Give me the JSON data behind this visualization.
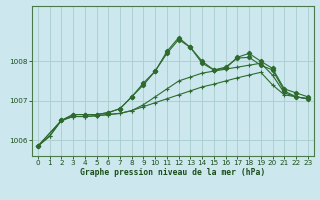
{
  "bg_color": "#cce8ee",
  "grid_color": "#aacccc",
  "line_color": "#2d6a2d",
  "marker_color": "#2d6a2d",
  "xlabel": "Graphe pression niveau de la mer (hPa)",
  "xlabel_color": "#1a4d1a",
  "tick_color": "#1a4d1a",
  "xlim": [
    -0.5,
    23.5
  ],
  "ylim": [
    1005.6,
    1009.4
  ],
  "yticks": [
    1006,
    1007,
    1008
  ],
  "xticks": [
    0,
    1,
    2,
    3,
    4,
    5,
    6,
    7,
    8,
    9,
    10,
    11,
    12,
    13,
    14,
    15,
    16,
    17,
    18,
    19,
    20,
    21,
    22,
    23
  ],
  "series1_x": [
    0,
    1,
    2,
    3,
    4,
    5,
    6,
    7,
    8,
    9,
    10,
    11,
    12,
    13,
    14,
    15,
    16,
    17,
    18,
    19,
    20,
    21,
    22,
    23
  ],
  "series1_y": [
    1005.85,
    1006.1,
    1006.5,
    1006.6,
    1006.6,
    1006.62,
    1006.65,
    1006.68,
    1006.75,
    1006.85,
    1006.95,
    1007.05,
    1007.15,
    1007.25,
    1007.35,
    1007.42,
    1007.5,
    1007.58,
    1007.65,
    1007.72,
    1007.4,
    1007.15,
    1007.1,
    1007.05
  ],
  "series2_x": [
    0,
    1,
    2,
    3,
    4,
    5,
    6,
    7,
    8,
    9,
    10,
    11,
    12,
    13,
    14,
    15,
    16,
    17,
    18,
    19,
    20,
    21,
    22,
    23
  ],
  "series2_y": [
    1005.85,
    1006.1,
    1006.5,
    1006.6,
    1006.6,
    1006.62,
    1006.65,
    1006.68,
    1006.75,
    1006.9,
    1007.1,
    1007.3,
    1007.5,
    1007.6,
    1007.7,
    1007.75,
    1007.8,
    1007.85,
    1007.9,
    1007.95,
    1007.65,
    1007.2,
    1007.1,
    1007.05
  ],
  "series3_x": [
    0,
    2,
    3,
    4,
    5,
    6,
    7,
    8,
    9,
    10,
    11,
    12,
    13,
    14,
    15,
    16,
    17,
    18,
    19,
    20,
    21,
    22,
    23
  ],
  "series3_y": [
    1005.85,
    1006.5,
    1006.65,
    1006.65,
    1006.65,
    1006.7,
    1006.8,
    1007.1,
    1007.4,
    1007.75,
    1008.2,
    1008.55,
    1008.35,
    1007.95,
    1007.78,
    1007.85,
    1008.08,
    1008.1,
    1007.9,
    1007.78,
    1007.25,
    1007.1,
    1007.05
  ],
  "series4_x": [
    0,
    2,
    3,
    4,
    5,
    6,
    7,
    8,
    9,
    10,
    11,
    12,
    13,
    14,
    15,
    16,
    17,
    18,
    19,
    20,
    21,
    22,
    23
  ],
  "series4_y": [
    1005.85,
    1006.5,
    1006.65,
    1006.65,
    1006.65,
    1006.7,
    1006.8,
    1007.1,
    1007.45,
    1007.75,
    1008.25,
    1008.6,
    1008.35,
    1008.0,
    1007.78,
    1007.82,
    1008.1,
    1008.2,
    1008.0,
    1007.82,
    1007.3,
    1007.2,
    1007.1
  ]
}
